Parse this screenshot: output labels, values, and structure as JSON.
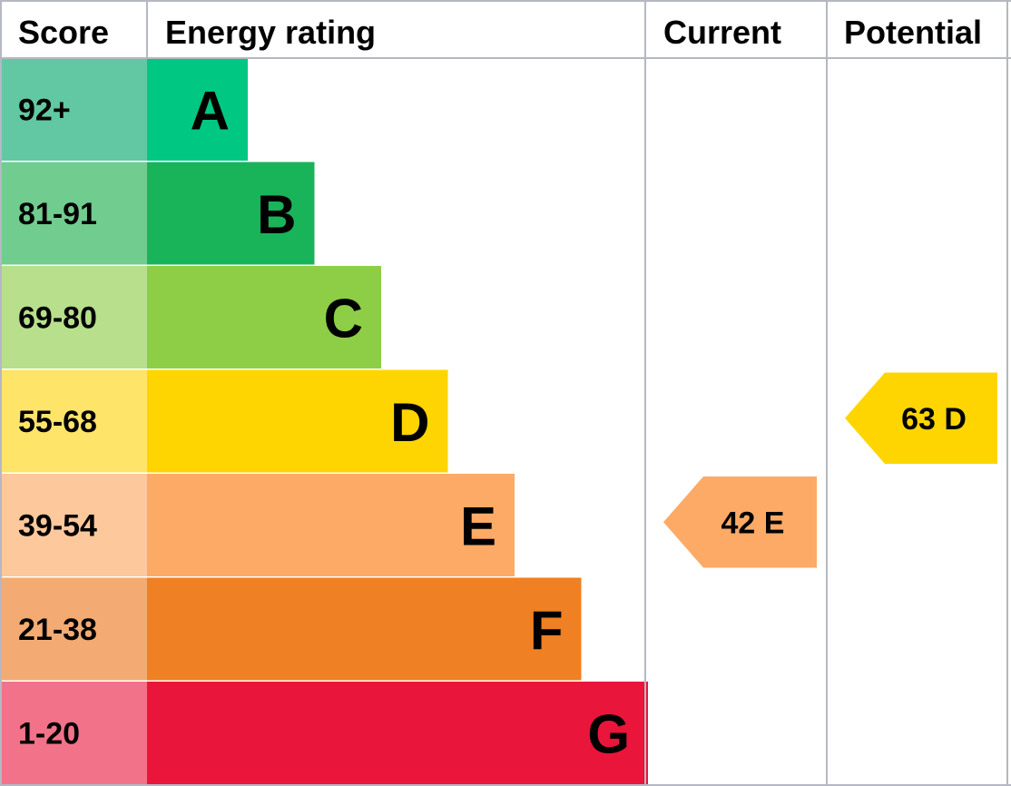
{
  "chart_data": {
    "type": "bar",
    "headers": {
      "score": "Score",
      "rating": "Energy rating",
      "current": "Current",
      "potential": "Potential"
    },
    "bands": [
      {
        "letter": "A",
        "range": "92+",
        "color": "#00c781",
        "score_color": "#62c8a3"
      },
      {
        "letter": "B",
        "range": "81-91",
        "color": "#19b459",
        "score_color": "#71cc8f"
      },
      {
        "letter": "C",
        "range": "69-80",
        "color": "#8dce46",
        "score_color": "#b7df8c"
      },
      {
        "letter": "D",
        "range": "55-68",
        "color": "#ffd500",
        "score_color": "#ffe46a"
      },
      {
        "letter": "E",
        "range": "39-54",
        "color": "#fcaa65",
        "score_color": "#fdc89c"
      },
      {
        "letter": "F",
        "range": "21-38",
        "color": "#ef8023",
        "score_color": "#f3ab73"
      },
      {
        "letter": "G",
        "range": "1-20",
        "color": "#e9153b",
        "score_color": "#f27389"
      }
    ],
    "current": {
      "score": 42,
      "band": "E",
      "label": "42 E",
      "color": "#fcaa65"
    },
    "potential": {
      "score": 63,
      "band": "D",
      "label": "63 D",
      "color": "#ffd500"
    }
  }
}
